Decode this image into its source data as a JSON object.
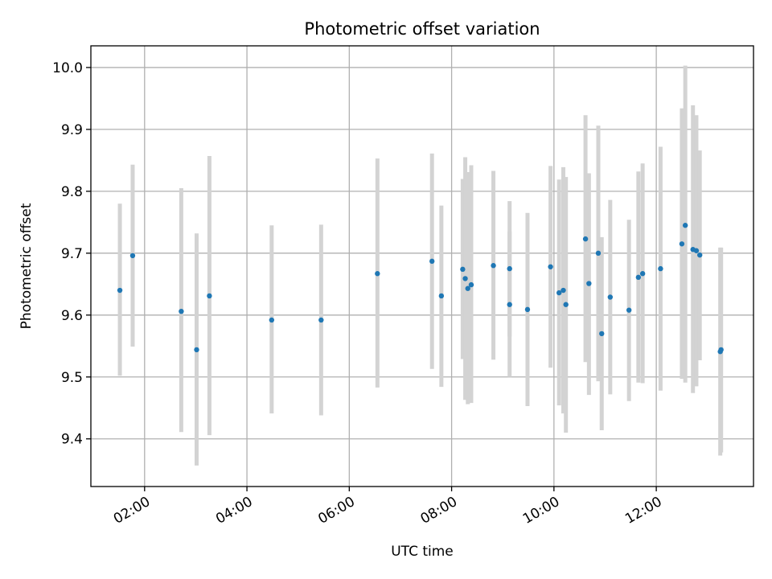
{
  "chart_data": {
    "type": "scatter",
    "title": "Photometric offset variation",
    "xlabel": "UTC time",
    "ylabel": "Photometric offset",
    "x_ticks": [
      "02:00",
      "04:00",
      "06:00",
      "08:00",
      "10:00",
      "12:00"
    ],
    "y_ticks": [
      "9.4",
      "9.5",
      "9.6",
      "9.7",
      "9.8",
      "9.9",
      "10.0"
    ],
    "xlim": [
      "00:57",
      "13:54"
    ],
    "ylim": [
      9.323,
      10.035
    ],
    "grid": true,
    "colors": {
      "points": "#1f77b4",
      "errorbars": "#d3d3d3"
    },
    "points": [
      {
        "x": "01:31",
        "y": 9.64,
        "y_low": 9.502,
        "y_high": 9.78
      },
      {
        "x": "01:46",
        "y": 9.696,
        "y_low": 9.549,
        "y_high": 9.843
      },
      {
        "x": "02:43",
        "y": 9.606,
        "y_low": 9.411,
        "y_high": 9.805
      },
      {
        "x": "03:01",
        "y": 9.544,
        "y_low": 9.357,
        "y_high": 9.732
      },
      {
        "x": "03:16",
        "y": 9.631,
        "y_low": 9.406,
        "y_high": 9.857
      },
      {
        "x": "04:29",
        "y": 9.592,
        "y_low": 9.441,
        "y_high": 9.745
      },
      {
        "x": "05:27",
        "y": 9.592,
        "y_low": 9.438,
        "y_high": 9.746
      },
      {
        "x": "06:33",
        "y": 9.667,
        "y_low": 9.483,
        "y_high": 9.853
      },
      {
        "x": "07:37",
        "y": 9.687,
        "y_low": 9.513,
        "y_high": 9.861
      },
      {
        "x": "07:48",
        "y": 9.631,
        "y_low": 9.484,
        "y_high": 9.777
      },
      {
        "x": "08:13",
        "y": 9.674,
        "y_low": 9.529,
        "y_high": 9.82
      },
      {
        "x": "08:16",
        "y": 9.659,
        "y_low": 9.463,
        "y_high": 9.855
      },
      {
        "x": "08:19",
        "y": 9.643,
        "y_low": 9.456,
        "y_high": 9.831
      },
      {
        "x": "08:23",
        "y": 9.649,
        "y_low": 9.458,
        "y_high": 9.842
      },
      {
        "x": "08:49",
        "y": 9.68,
        "y_low": 9.528,
        "y_high": 9.833
      },
      {
        "x": "09:08",
        "y": 9.675,
        "y_low": 9.565,
        "y_high": 9.784
      },
      {
        "x": "09:08",
        "y": 9.617,
        "y_low": 9.5,
        "y_high": 9.735
      },
      {
        "x": "09:29",
        "y": 9.609,
        "y_low": 9.453,
        "y_high": 9.765
      },
      {
        "x": "09:56",
        "y": 9.678,
        "y_low": 9.515,
        "y_high": 9.841
      },
      {
        "x": "10:06",
        "y": 9.636,
        "y_low": 9.454,
        "y_high": 9.819
      },
      {
        "x": "10:11",
        "y": 9.64,
        "y_low": 9.441,
        "y_high": 9.839
      },
      {
        "x": "10:14",
        "y": 9.617,
        "y_low": 9.41,
        "y_high": 9.823
      },
      {
        "x": "10:37",
        "y": 9.723,
        "y_low": 9.524,
        "y_high": 9.923
      },
      {
        "x": "10:41",
        "y": 9.651,
        "y_low": 9.471,
        "y_high": 9.829
      },
      {
        "x": "10:52",
        "y": 9.7,
        "y_low": 9.493,
        "y_high": 9.906
      },
      {
        "x": "10:56",
        "y": 9.57,
        "y_low": 9.414,
        "y_high": 9.726
      },
      {
        "x": "11:06",
        "y": 9.629,
        "y_low": 9.472,
        "y_high": 9.786
      },
      {
        "x": "11:28",
        "y": 9.608,
        "y_low": 9.461,
        "y_high": 9.754
      },
      {
        "x": "11:39",
        "y": 9.661,
        "y_low": 9.491,
        "y_high": 9.832
      },
      {
        "x": "11:44",
        "y": 9.667,
        "y_low": 9.49,
        "y_high": 9.845
      },
      {
        "x": "12:05",
        "y": 9.675,
        "y_low": 9.478,
        "y_high": 9.872
      },
      {
        "x": "12:30",
        "y": 9.715,
        "y_low": 9.497,
        "y_high": 9.934
      },
      {
        "x": "12:34",
        "y": 9.745,
        "y_low": 9.491,
        "y_high": 10.003
      },
      {
        "x": "12:43",
        "y": 9.706,
        "y_low": 9.474,
        "y_high": 9.939
      },
      {
        "x": "12:47",
        "y": 9.704,
        "y_low": 9.485,
        "y_high": 9.923
      },
      {
        "x": "12:51",
        "y": 9.697,
        "y_low": 9.527,
        "y_high": 9.866
      },
      {
        "x": "13:15",
        "y": 9.541,
        "y_low": 9.373,
        "y_high": 9.709
      },
      {
        "x": "13:16",
        "y": 9.544,
        "y_low": 9.378,
        "y_high": 9.709
      }
    ]
  }
}
